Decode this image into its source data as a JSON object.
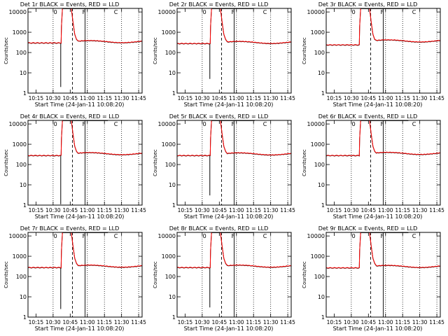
{
  "chart_data": {
    "type": "line",
    "panels": [
      {
        "title": "Det 1r BLACK = Events, RED = LLD",
        "pre": 300,
        "post": 350,
        "plateau_end": 110,
        "black_dip": 2
      },
      {
        "title": "Det 2r BLACK = Events, RED = LLD",
        "pre": 280,
        "post": 320,
        "plateau_end": 107,
        "black_dip": 5
      },
      {
        "title": "Det 3r BLACK = Events, RED = LLD",
        "pre": 240,
        "post": 380,
        "plateau_end": 112,
        "black_dip": null
      },
      {
        "title": "Det 4r BLACK = Events, RED = LLD",
        "pre": 280,
        "post": 350,
        "plateau_end": 110,
        "black_dip": 1.1
      },
      {
        "title": "Det 5r BLACK = Events, RED = LLD",
        "pre": 280,
        "post": 340,
        "plateau_end": 108,
        "black_dip": 3
      },
      {
        "title": "Det 6r BLACK = Events, RED = LLD",
        "pre": 280,
        "post": 360,
        "plateau_end": 112,
        "black_dip": null
      },
      {
        "title": "Det 7r BLACK = Events, RED = LLD",
        "pre": 280,
        "post": 330,
        "plateau_end": 110,
        "black_dip": 2.5
      },
      {
        "title": "Det 8r BLACK = Events, RED = LLD",
        "pre": 280,
        "post": 330,
        "plateau_end": 107,
        "black_dip": 3
      },
      {
        "title": "Det 9r BLACK = Events, RED = LLD",
        "pre": 270,
        "post": 320,
        "plateau_end": 112,
        "black_dip": null
      }
    ],
    "x_ticks_minutes": [
      7,
      22,
      37,
      52,
      67,
      82,
      97
    ],
    "x_tick_labels": [
      "10:15",
      "10:30",
      "10:45",
      "11:00",
      "11:15",
      "11:30",
      "11:45"
    ],
    "xlim_minutes": [
      0,
      100
    ],
    "y_scale": "log",
    "ylim": [
      1,
      15000
    ],
    "y_ticks": [
      1,
      10,
      100,
      1000,
      10000
    ],
    "y_tick_labels": [
      "1",
      "10",
      "100",
      "1000",
      "10000"
    ],
    "ylabel": "Counts/sec",
    "xlabel": "Start Time (24-Jan-11 10:08:20)",
    "attenuator_labels": [
      "0",
      "F",
      "C"
    ],
    "attenuator_minutes": [
      24,
      49,
      77
    ],
    "rise_minutes": 29,
    "dotted_lines_minutes": [
      22,
      52,
      67,
      82,
      97
    ],
    "solid_line_minutes": [
      50
    ],
    "dashed_lines_minutes": [
      39
    ],
    "colors": {
      "events": "#000000",
      "lld": "#ff0000"
    }
  }
}
